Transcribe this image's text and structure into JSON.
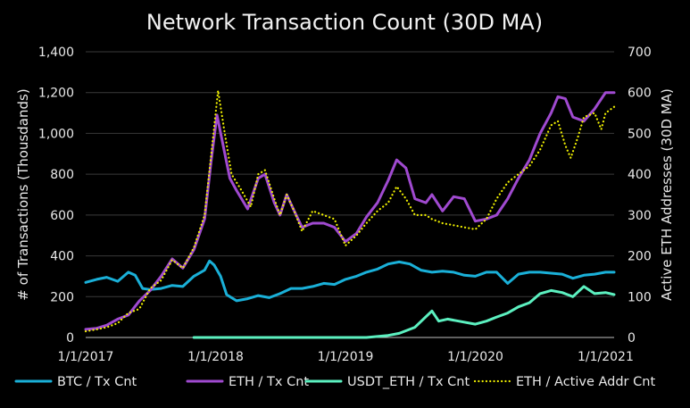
{
  "chart_data": {
    "type": "line",
    "title": "Network Transaction Count (30D MA)",
    "ylabel": "# of Transactions (Thousdands)",
    "y2label": "Active ETH Addresses (30D MA)",
    "xlim": [
      "2017-01-01",
      "2021-01-25"
    ],
    "ylim": [
      0,
      1400
    ],
    "y2lim": [
      0,
      700
    ],
    "x_ticks": [
      "1/1/2017",
      "1/1/2018",
      "1/1/2019",
      "1/1/2020",
      "1/1/2021"
    ],
    "y_ticks": [
      "0",
      "200",
      "400",
      "600",
      "800",
      "1,000",
      "1,200",
      "1,400"
    ],
    "y2_ticks": [
      "0",
      "100",
      "200",
      "300",
      "400",
      "500",
      "600",
      "700"
    ],
    "grid": "horizontal",
    "legend_position": "bottom",
    "series": [
      {
        "name": "BTC / Tx Cnt",
        "axis": "left",
        "color": "#1ab0d8",
        "style": "solid",
        "points": [
          [
            "2017-01-01",
            270
          ],
          [
            "2017-02-01",
            285
          ],
          [
            "2017-03-01",
            295
          ],
          [
            "2017-04-01",
            275
          ],
          [
            "2017-05-01",
            320
          ],
          [
            "2017-05-20",
            305
          ],
          [
            "2017-06-10",
            240
          ],
          [
            "2017-07-01",
            235
          ],
          [
            "2017-08-01",
            240
          ],
          [
            "2017-09-01",
            255
          ],
          [
            "2017-10-01",
            250
          ],
          [
            "2017-11-01",
            300
          ],
          [
            "2017-12-01",
            330
          ],
          [
            "2017-12-15",
            375
          ],
          [
            "2017-12-28",
            355
          ],
          [
            "2018-01-15",
            300
          ],
          [
            "2018-02-01",
            210
          ],
          [
            "2018-03-01",
            180
          ],
          [
            "2018-04-01",
            190
          ],
          [
            "2018-05-01",
            205
          ],
          [
            "2018-06-01",
            195
          ],
          [
            "2018-07-01",
            215
          ],
          [
            "2018-08-01",
            240
          ],
          [
            "2018-09-01",
            240
          ],
          [
            "2018-10-01",
            250
          ],
          [
            "2018-11-01",
            265
          ],
          [
            "2018-12-01",
            260
          ],
          [
            "2019-01-01",
            285
          ],
          [
            "2019-02-01",
            300
          ],
          [
            "2019-03-01",
            320
          ],
          [
            "2019-04-01",
            335
          ],
          [
            "2019-05-01",
            360
          ],
          [
            "2019-06-01",
            370
          ],
          [
            "2019-07-01",
            360
          ],
          [
            "2019-08-01",
            330
          ],
          [
            "2019-09-01",
            320
          ],
          [
            "2019-10-01",
            325
          ],
          [
            "2019-11-01",
            320
          ],
          [
            "2019-12-01",
            305
          ],
          [
            "2020-01-01",
            300
          ],
          [
            "2020-02-01",
            320
          ],
          [
            "2020-03-01",
            320
          ],
          [
            "2020-04-01",
            265
          ],
          [
            "2020-05-01",
            310
          ],
          [
            "2020-06-01",
            320
          ],
          [
            "2020-07-01",
            320
          ],
          [
            "2020-08-01",
            315
          ],
          [
            "2020-09-01",
            310
          ],
          [
            "2020-10-01",
            290
          ],
          [
            "2020-11-01",
            305
          ],
          [
            "2020-12-01",
            310
          ],
          [
            "2021-01-01",
            320
          ],
          [
            "2021-01-25",
            320
          ]
        ]
      },
      {
        "name": "ETH / Tx Cnt",
        "axis": "left",
        "color": "#a04ad0",
        "style": "solid",
        "points": [
          [
            "2017-01-01",
            40
          ],
          [
            "2017-02-01",
            45
          ],
          [
            "2017-03-01",
            60
          ],
          [
            "2017-04-01",
            90
          ],
          [
            "2017-05-01",
            110
          ],
          [
            "2017-06-01",
            180
          ],
          [
            "2017-07-01",
            230
          ],
          [
            "2017-08-01",
            300
          ],
          [
            "2017-09-01",
            385
          ],
          [
            "2017-10-01",
            340
          ],
          [
            "2017-11-01",
            430
          ],
          [
            "2017-12-01",
            580
          ],
          [
            "2017-12-20",
            870
          ],
          [
            "2018-01-05",
            1090
          ],
          [
            "2018-01-20",
            960
          ],
          [
            "2018-02-10",
            780
          ],
          [
            "2018-03-01",
            720
          ],
          [
            "2018-04-01",
            630
          ],
          [
            "2018-05-01",
            780
          ],
          [
            "2018-05-20",
            800
          ],
          [
            "2018-06-15",
            660
          ],
          [
            "2018-07-01",
            600
          ],
          [
            "2018-07-20",
            700
          ],
          [
            "2018-08-10",
            620
          ],
          [
            "2018-09-01",
            540
          ],
          [
            "2018-10-01",
            560
          ],
          [
            "2018-11-01",
            560
          ],
          [
            "2018-12-01",
            540
          ],
          [
            "2019-01-01",
            470
          ],
          [
            "2019-02-01",
            510
          ],
          [
            "2019-03-01",
            590
          ],
          [
            "2019-04-01",
            660
          ],
          [
            "2019-05-01",
            770
          ],
          [
            "2019-05-25",
            870
          ],
          [
            "2019-06-20",
            830
          ],
          [
            "2019-07-15",
            680
          ],
          [
            "2019-08-15",
            660
          ],
          [
            "2019-09-01",
            700
          ],
          [
            "2019-10-01",
            620
          ],
          [
            "2019-11-01",
            690
          ],
          [
            "2019-12-01",
            680
          ],
          [
            "2020-01-01",
            570
          ],
          [
            "2020-02-01",
            580
          ],
          [
            "2020-03-01",
            600
          ],
          [
            "2020-04-01",
            680
          ],
          [
            "2020-05-01",
            780
          ],
          [
            "2020-06-01",
            870
          ],
          [
            "2020-07-01",
            1000
          ],
          [
            "2020-08-01",
            1100
          ],
          [
            "2020-08-20",
            1180
          ],
          [
            "2020-09-10",
            1170
          ],
          [
            "2020-10-01",
            1080
          ],
          [
            "2020-11-01",
            1060
          ],
          [
            "2020-12-01",
            1120
          ],
          [
            "2021-01-01",
            1200
          ],
          [
            "2021-01-25",
            1200
          ]
        ]
      },
      {
        "name": "USDT_ETH / Tx Cnt",
        "axis": "left",
        "color": "#5cf0c0",
        "style": "solid",
        "points": [
          [
            "2017-11-01",
            0
          ],
          [
            "2019-03-01",
            0
          ],
          [
            "2019-05-01",
            10
          ],
          [
            "2019-06-01",
            20
          ],
          [
            "2019-07-15",
            50
          ],
          [
            "2019-09-01",
            130
          ],
          [
            "2019-09-20",
            80
          ],
          [
            "2019-10-15",
            90
          ],
          [
            "2019-11-15",
            80
          ],
          [
            "2020-01-01",
            65
          ],
          [
            "2020-02-01",
            80
          ],
          [
            "2020-03-01",
            100
          ],
          [
            "2020-04-01",
            120
          ],
          [
            "2020-05-01",
            150
          ],
          [
            "2020-06-01",
            170
          ],
          [
            "2020-07-01",
            215
          ],
          [
            "2020-08-01",
            230
          ],
          [
            "2020-09-01",
            220
          ],
          [
            "2020-10-01",
            200
          ],
          [
            "2020-11-01",
            250
          ],
          [
            "2020-12-01",
            215
          ],
          [
            "2021-01-01",
            220
          ],
          [
            "2021-01-25",
            210
          ]
        ]
      },
      {
        "name": "ETH / Active Addr Cnt",
        "axis": "right",
        "color": "#f0f000",
        "style": "dotted",
        "points": [
          [
            "2017-01-01",
            15
          ],
          [
            "2017-02-01",
            20
          ],
          [
            "2017-03-01",
            25
          ],
          [
            "2017-04-01",
            35
          ],
          [
            "2017-05-01",
            60
          ],
          [
            "2017-06-01",
            70
          ],
          [
            "2017-07-01",
            120
          ],
          [
            "2017-08-01",
            140
          ],
          [
            "2017-09-01",
            190
          ],
          [
            "2017-10-01",
            170
          ],
          [
            "2017-11-01",
            220
          ],
          [
            "2017-12-01",
            300
          ],
          [
            "2017-12-20",
            450
          ],
          [
            "2018-01-08",
            605
          ],
          [
            "2018-01-25",
            510
          ],
          [
            "2018-02-15",
            400
          ],
          [
            "2018-03-15",
            360
          ],
          [
            "2018-04-10",
            320
          ],
          [
            "2018-05-01",
            400
          ],
          [
            "2018-05-20",
            410
          ],
          [
            "2018-06-15",
            340
          ],
          [
            "2018-07-01",
            300
          ],
          [
            "2018-07-20",
            350
          ],
          [
            "2018-08-10",
            310
          ],
          [
            "2018-09-01",
            260
          ],
          [
            "2018-10-01",
            310
          ],
          [
            "2018-11-01",
            300
          ],
          [
            "2018-12-01",
            290
          ],
          [
            "2019-01-01",
            225
          ],
          [
            "2019-02-01",
            250
          ],
          [
            "2019-03-01",
            280
          ],
          [
            "2019-04-01",
            310
          ],
          [
            "2019-05-01",
            330
          ],
          [
            "2019-05-25",
            370
          ],
          [
            "2019-06-20",
            340
          ],
          [
            "2019-07-15",
            300
          ],
          [
            "2019-08-15",
            300
          ],
          [
            "2019-09-01",
            290
          ],
          [
            "2019-10-01",
            280
          ],
          [
            "2019-11-01",
            275
          ],
          [
            "2019-12-01",
            270
          ],
          [
            "2020-01-01",
            265
          ],
          [
            "2020-02-01",
            290
          ],
          [
            "2020-03-01",
            340
          ],
          [
            "2020-04-01",
            380
          ],
          [
            "2020-05-01",
            400
          ],
          [
            "2020-06-01",
            420
          ],
          [
            "2020-07-01",
            460
          ],
          [
            "2020-08-01",
            520
          ],
          [
            "2020-08-20",
            530
          ],
          [
            "2020-09-10",
            470
          ],
          [
            "2020-09-25",
            440
          ],
          [
            "2020-10-15",
            490
          ],
          [
            "2020-11-01",
            540
          ],
          [
            "2020-12-01",
            550
          ],
          [
            "2020-12-20",
            510
          ],
          [
            "2021-01-01",
            550
          ],
          [
            "2021-01-25",
            565
          ]
        ]
      }
    ]
  }
}
